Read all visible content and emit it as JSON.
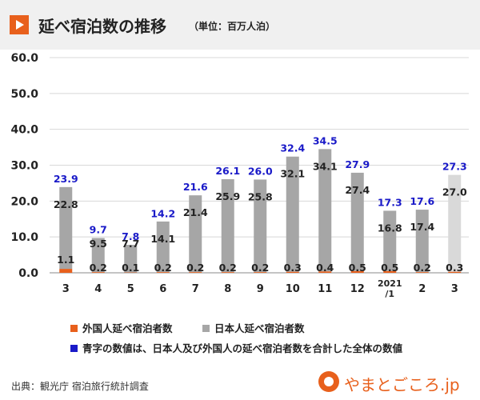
{
  "header": {
    "title": "延べ宿泊数の推移",
    "unit": "（単位：百万人泊）",
    "play_icon": "play-icon"
  },
  "colors": {
    "foreign": "#e8601c",
    "japanese": "#a6a6a6",
    "japanese_latest": "#d9d9d9",
    "total_label": "#1a1ac8",
    "title_bg": "#f0f0f0"
  },
  "chart_data": {
    "type": "bar",
    "stacked": true,
    "categories": [
      "3",
      "4",
      "5",
      "6",
      "7",
      "8",
      "9",
      "10",
      "11",
      "12",
      "2021/1",
      "2",
      "3"
    ],
    "category_lines": [
      [
        "3"
      ],
      [
        "4"
      ],
      [
        "5"
      ],
      [
        "6"
      ],
      [
        "7"
      ],
      [
        "8"
      ],
      [
        "9"
      ],
      [
        "10"
      ],
      [
        "11"
      ],
      [
        "12"
      ],
      [
        "2021",
        "/1"
      ],
      [
        "2"
      ],
      [
        "3"
      ]
    ],
    "series": [
      {
        "name": "外国人延べ宿泊者数",
        "values": [
          1.1,
          0.2,
          0.1,
          0.2,
          0.2,
          0.2,
          0.2,
          0.3,
          0.4,
          0.5,
          0.5,
          0.2,
          0.3
        ]
      },
      {
        "name": "日本人延べ宿泊者数",
        "values": [
          22.8,
          9.5,
          7.7,
          14.1,
          21.4,
          25.9,
          25.8,
          32.1,
          34.1,
          27.4,
          16.8,
          17.4,
          27.0
        ]
      }
    ],
    "totals": [
      23.9,
      9.7,
      7.8,
      14.2,
      21.6,
      26.1,
      26.0,
      32.4,
      34.5,
      27.9,
      17.3,
      17.6,
      27.3
    ],
    "foreign_labels": [
      "1.1",
      "0.2",
      "0.1",
      "0.2",
      "0.2",
      "0.2",
      "0.2",
      "0.3",
      "0.4",
      "0.5",
      "0.5",
      "0.2",
      "0.3"
    ],
    "japanese_labels": [
      "22.8",
      "9.5",
      "7.7",
      "14.1",
      "21.4",
      "25.9",
      "25.8",
      "32.1",
      "34.1",
      "27.4",
      "16.8",
      "17.4",
      "27.0"
    ],
    "total_labels": [
      "23.9",
      "9.7",
      "7.8",
      "14.2",
      "21.6",
      "26.1",
      "26.0",
      "32.4",
      "34.5",
      "27.9",
      "17.3",
      "17.6",
      "27.3"
    ],
    "y_ticks": [
      "0.0",
      "10.0",
      "20.0",
      "30.0",
      "40.0",
      "50.0",
      "60.0"
    ],
    "ylim": [
      0,
      60
    ],
    "highlight_last": true,
    "legend": [
      "外国人延べ宿泊者数",
      "日本人延べ宿泊者数"
    ]
  },
  "legend": {
    "foreign": "外国人延べ宿泊者数",
    "japanese": "日本人延べ宿泊者数",
    "note": "青字の数値は、日本人及び外国人の延べ宿泊者数を合計した全体の数値"
  },
  "footer": {
    "source": "出典：観光庁 宿泊旅行統計調査",
    "logo_text": "やまとごころ.jp"
  }
}
